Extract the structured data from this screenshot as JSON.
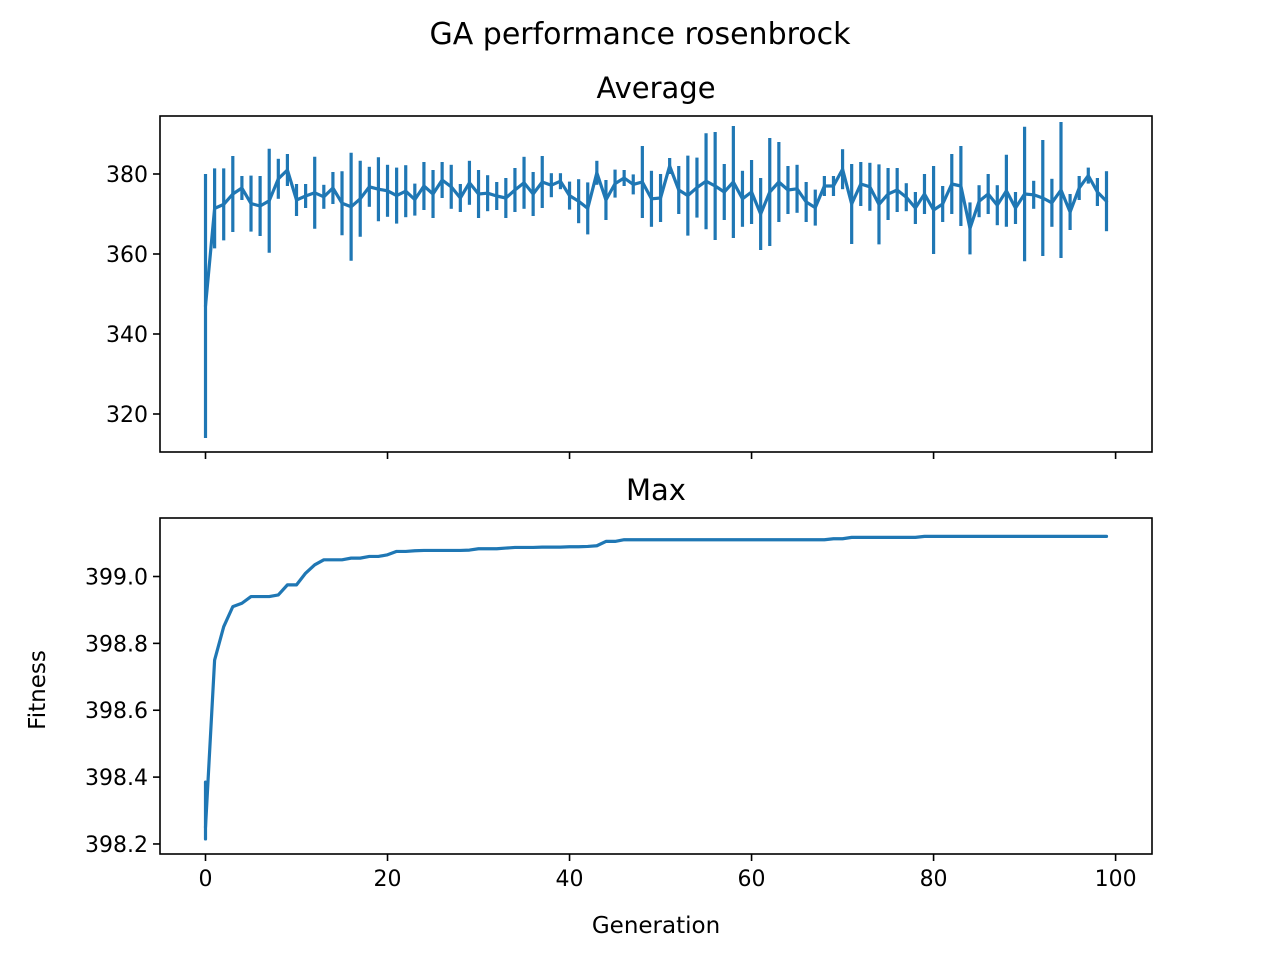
{
  "figure": {
    "suptitle": "GA performance rosenbrock",
    "line_color": "#1f77b4"
  },
  "chart_data": [
    {
      "type": "line",
      "subtype": "errorbar",
      "title": "Average",
      "xlabel": "",
      "ylabel": "",
      "xlim": [
        -5,
        104
      ],
      "ylim": [
        310.5,
        394.5
      ],
      "xticks": [
        0,
        20,
        40,
        60,
        80,
        100
      ],
      "xtick_labels_shown": false,
      "yticks": [
        320,
        340,
        360,
        380
      ],
      "ytick_labels": [
        "320",
        "340",
        "360",
        "380"
      ],
      "grid": false,
      "legend": "none",
      "x": [
        0,
        1,
        2,
        3,
        4,
        5,
        6,
        7,
        8,
        9,
        10,
        11,
        12,
        13,
        14,
        15,
        16,
        17,
        18,
        19,
        20,
        21,
        22,
        23,
        24,
        25,
        26,
        27,
        28,
        29,
        30,
        31,
        32,
        33,
        34,
        35,
        36,
        37,
        38,
        39,
        40,
        41,
        42,
        43,
        44,
        45,
        46,
        47,
        48,
        49,
        50,
        51,
        52,
        53,
        54,
        55,
        56,
        57,
        58,
        59,
        60,
        61,
        62,
        63,
        64,
        65,
        66,
        67,
        68,
        69,
        70,
        71,
        72,
        73,
        74,
        75,
        76,
        77,
        78,
        79,
        80,
        81,
        82,
        83,
        84,
        85,
        86,
        87,
        88,
        89,
        90,
        91,
        92,
        93,
        94,
        95,
        96,
        97,
        98,
        99
      ],
      "y": [
        347.0,
        371.4,
        372.4,
        375.0,
        376.5,
        372.6,
        372.0,
        373.3,
        378.8,
        381.0,
        373.5,
        374.5,
        375.3,
        374.3,
        376.5,
        372.7,
        371.8,
        373.8,
        376.8,
        376.2,
        375.8,
        374.6,
        375.7,
        373.6,
        377.0,
        375.0,
        378.5,
        376.8,
        374.0,
        377.8,
        375.0,
        375.2,
        374.5,
        374.0,
        376.0,
        377.8,
        375.0,
        378.0,
        377.2,
        378.2,
        374.6,
        373.2,
        371.4,
        380.3,
        373.5,
        377.6,
        379.0,
        377.4,
        378.0,
        373.8,
        374.0,
        382.0,
        376.0,
        374.6,
        376.6,
        378.2,
        377.0,
        375.5,
        378.0,
        373.8,
        375.5,
        370.0,
        375.5,
        378.0,
        376.0,
        376.3,
        373.0,
        371.6,
        377.0,
        377.0,
        381.2,
        372.5,
        377.5,
        376.8,
        372.4,
        375.0,
        376.0,
        374.2,
        371.5,
        375.0,
        371.0,
        372.5,
        377.5,
        377.0,
        366.4,
        373.2,
        375.0,
        372.2,
        375.8,
        371.5,
        375.0,
        374.8,
        374.0,
        372.8,
        376.0,
        370.5,
        376.5,
        379.6,
        375.5,
        373.2
      ],
      "err": [
        33.0,
        10.0,
        9.0,
        9.5,
        3.0,
        7.0,
        7.5,
        13.0,
        5.0,
        4.0,
        4.0,
        3.0,
        9.0,
        3.0,
        4.0,
        8.0,
        13.5,
        9.5,
        5.0,
        8.0,
        6.5,
        7.0,
        6.5,
        4.0,
        6.0,
        6.0,
        4.5,
        5.5,
        3.5,
        5.5,
        6.0,
        4.5,
        3.5,
        5.0,
        5.5,
        6.5,
        5.5,
        6.5,
        3.0,
        2.0,
        3.5,
        5.5,
        6.5,
        3.0,
        5.0,
        3.5,
        2.0,
        2.5,
        9.0,
        7.0,
        6.0,
        2.0,
        6.0,
        10.0,
        7.5,
        12.0,
        13.5,
        7.0,
        14.0,
        7.0,
        8.0,
        9.0,
        13.5,
        10.0,
        6.0,
        6.0,
        5.0,
        4.5,
        2.5,
        2.5,
        5.0,
        10.0,
        5.5,
        6.0,
        10.0,
        6.5,
        5.5,
        3.5,
        4.0,
        5.0,
        11.0,
        4.5,
        7.5,
        10.0,
        6.5,
        4.0,
        5.0,
        5.0,
        9.0,
        4.0,
        16.8,
        3.5,
        14.5,
        6.0,
        17.0,
        4.5,
        3.0,
        2.0,
        3.5,
        7.5
      ]
    },
    {
      "type": "line",
      "title": "Max",
      "xlabel": "Generation",
      "ylabel": "Fitness",
      "xlim": [
        -5,
        104
      ],
      "ylim": [
        398.17,
        399.175
      ],
      "xticks": [
        0,
        20,
        40,
        60,
        80,
        100
      ],
      "xtick_labels": [
        "0",
        "20",
        "40",
        "60",
        "80",
        "100"
      ],
      "yticks": [
        398.2,
        398.4,
        398.6,
        398.8,
        399.0
      ],
      "ytick_labels": [
        "398.2",
        "398.4",
        "398.6",
        "398.8",
        "399.0"
      ],
      "grid": false,
      "legend": "none",
      "x": [
        0,
        1,
        2,
        3,
        4,
        5,
        6,
        7,
        8,
        9,
        10,
        11,
        12,
        13,
        14,
        15,
        16,
        17,
        18,
        19,
        20,
        21,
        22,
        23,
        24,
        25,
        26,
        27,
        28,
        29,
        30,
        31,
        32,
        33,
        34,
        35,
        36,
        37,
        38,
        39,
        40,
        41,
        42,
        43,
        44,
        45,
        46,
        47,
        48,
        49,
        50,
        51,
        52,
        53,
        54,
        55,
        56,
        57,
        58,
        59,
        60,
        61,
        62,
        63,
        64,
        65,
        66,
        67,
        68,
        69,
        70,
        71,
        72,
        73,
        74,
        75,
        76,
        77,
        78,
        79,
        80,
        81,
        82,
        83,
        84,
        85,
        86,
        87,
        88,
        89,
        90,
        91,
        92,
        93,
        94,
        95,
        96,
        97,
        98,
        99
      ],
      "y": [
        398.25,
        398.75,
        398.85,
        398.91,
        398.92,
        398.94,
        398.94,
        398.94,
        398.945,
        398.975,
        398.975,
        399.01,
        399.035,
        399.05,
        399.05,
        399.05,
        399.055,
        399.055,
        399.06,
        399.06,
        399.065,
        399.075,
        399.075,
        399.077,
        399.078,
        399.078,
        399.078,
        399.078,
        399.078,
        399.079,
        399.083,
        399.083,
        399.083,
        399.085,
        399.087,
        399.087,
        399.087,
        399.088,
        399.088,
        399.088,
        399.089,
        399.089,
        399.09,
        399.092,
        399.105,
        399.105,
        399.11,
        399.11,
        399.11,
        399.11,
        399.11,
        399.11,
        399.11,
        399.11,
        399.11,
        399.11,
        399.11,
        399.11,
        399.11,
        399.11,
        399.11,
        399.11,
        399.11,
        399.11,
        399.11,
        399.11,
        399.11,
        399.11,
        399.11,
        399.113,
        399.113,
        399.117,
        399.117,
        399.117,
        399.117,
        399.117,
        399.117,
        399.117,
        399.117,
        399.12,
        399.12,
        399.12,
        399.12,
        399.12,
        399.12,
        399.12,
        399.12,
        399.12,
        399.12,
        399.12,
        399.12,
        399.12,
        399.12,
        399.12,
        399.12,
        399.12,
        399.12,
        399.12,
        399.12,
        399.12
      ],
      "first_point_range": [
        398.215,
        398.385
      ]
    }
  ]
}
